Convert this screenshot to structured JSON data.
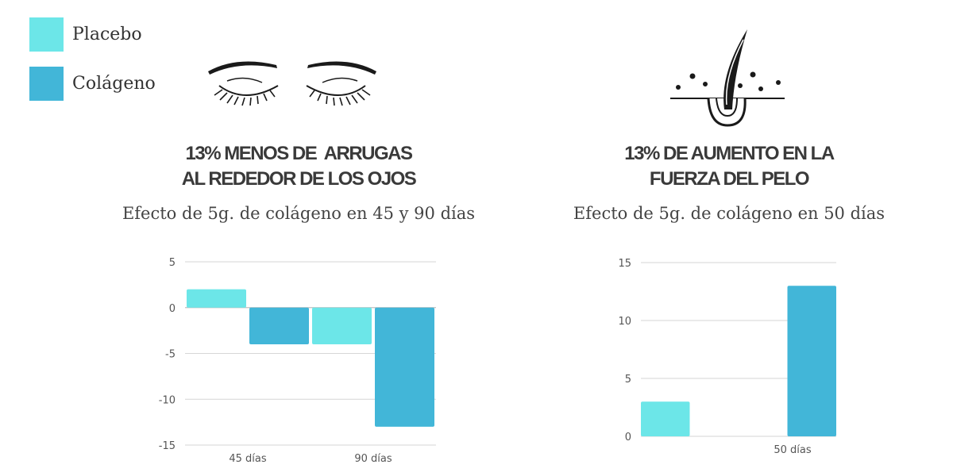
{
  "legend": [
    {
      "label": "Placebo",
      "color": "#6ce6e8"
    },
    {
      "label": "Colágeno",
      "color": "#42b6d8"
    }
  ],
  "panels": {
    "left": {
      "headline_line1": "13% MENOS DE  ARRUGAS",
      "headline_line2": "AL REDEDOR DE LOS OJOS",
      "subtitle": "Efecto de 5g. de colágeno en 45 y 90 días",
      "icon": "closed-eyes-icon"
    },
    "right": {
      "headline_line1": "13% DE AUMENTO EN LA",
      "headline_line2": "FUERZA DEL PELO",
      "subtitle": "Efecto de 5g. de colágeno en 50 días",
      "icon": "hair-follicle-icon"
    }
  },
  "chart_data": [
    {
      "type": "bar",
      "categories": [
        "45 días",
        "90 días"
      ],
      "series": [
        {
          "name": "Placebo",
          "values": [
            2,
            -4
          ]
        },
        {
          "name": "Colágeno",
          "values": [
            -4,
            -13
          ]
        }
      ],
      "ylim": [
        -15,
        5
      ],
      "yticks": [
        5,
        0,
        -5,
        -10,
        -15
      ],
      "ytick_labels": [
        "5",
        "0",
        "-5",
        "-10",
        "-15"
      ],
      "grid": true,
      "legend": "top-left"
    },
    {
      "type": "bar",
      "categories": [
        "50 días"
      ],
      "series": [
        {
          "name": "Placebo",
          "values": [
            3
          ]
        },
        {
          "name": "Colágeno",
          "values": [
            13
          ]
        }
      ],
      "ylim": [
        0,
        15
      ],
      "yticks": [
        15,
        10,
        5,
        0
      ],
      "ytick_labels": [
        "15",
        "10",
        "5",
        "0"
      ],
      "grid": true,
      "legend": "top-left"
    }
  ]
}
